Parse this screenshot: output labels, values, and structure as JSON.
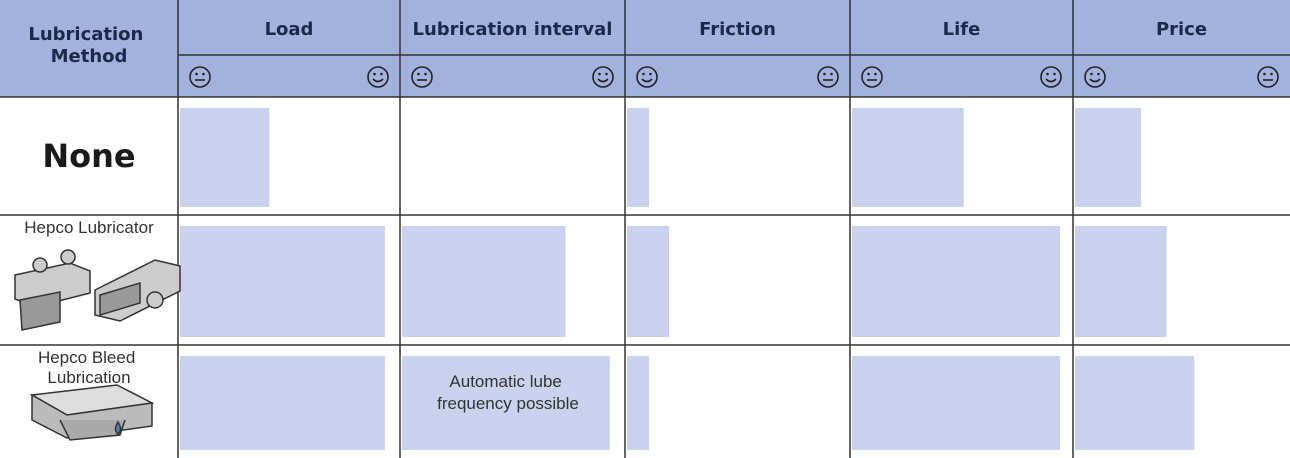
{
  "table": {
    "method_header": "Lubrication Method",
    "columns": [
      "Load",
      "Lubrication interval",
      "Friction",
      "Life",
      "Price"
    ],
    "rows": [
      {
        "method": "None",
        "bars": [
          41,
          null,
          10,
          51,
          31
        ]
      },
      {
        "method": "Hepco Lubricator",
        "bars": [
          94,
          74,
          19,
          95,
          43
        ]
      },
      {
        "method": "Hepco Bleed Lubrication",
        "bars": [
          94,
          94,
          10,
          95,
          56
        ]
      }
    ],
    "note": "Automatic lube frequency possible"
  }
}
